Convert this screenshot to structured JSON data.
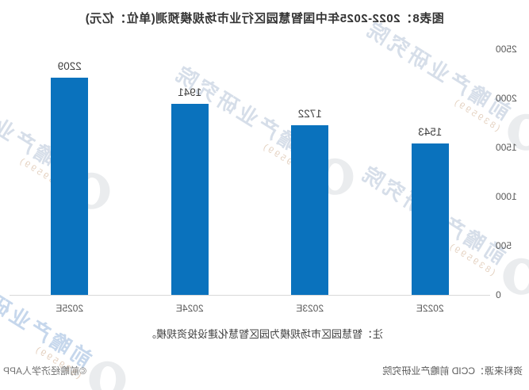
{
  "title": "图表8：2022-2025年中国智慧园区行业市场规模预测(单位：亿元)",
  "note": "注：智慧园区市场规模为园区智慧化建设投资规模。",
  "footer": {
    "source": "资料来源：CCID 前瞻产业研究院",
    "copyright": "©前瞻经济学人APP"
  },
  "watermark": {
    "brand": "前瞻产业研究院",
    "code": "(839599)"
  },
  "colors": {
    "bar": "#0a72bd",
    "axis_line": "#d9d9d9",
    "value_label": "#404040",
    "tick_label": "#595959"
  },
  "render": {
    "mirrored_horizontally": true
  },
  "chart_data": {
    "type": "bar",
    "title": "2022-2025年中国智慧园区行业市场规模预测",
    "unit": "亿元",
    "categories": [
      "2022E",
      "2023E",
      "2024E",
      "2025E"
    ],
    "values": [
      1543,
      1722,
      1941,
      2209
    ],
    "value_labels_shown": true,
    "xlabel": "",
    "ylabel": "",
    "ylim": [
      0,
      2500
    ],
    "yticks": [
      0,
      500,
      1000,
      1500,
      2000,
      2500
    ],
    "grid": false,
    "legend": false,
    "bar_color": "#0a72bd"
  }
}
